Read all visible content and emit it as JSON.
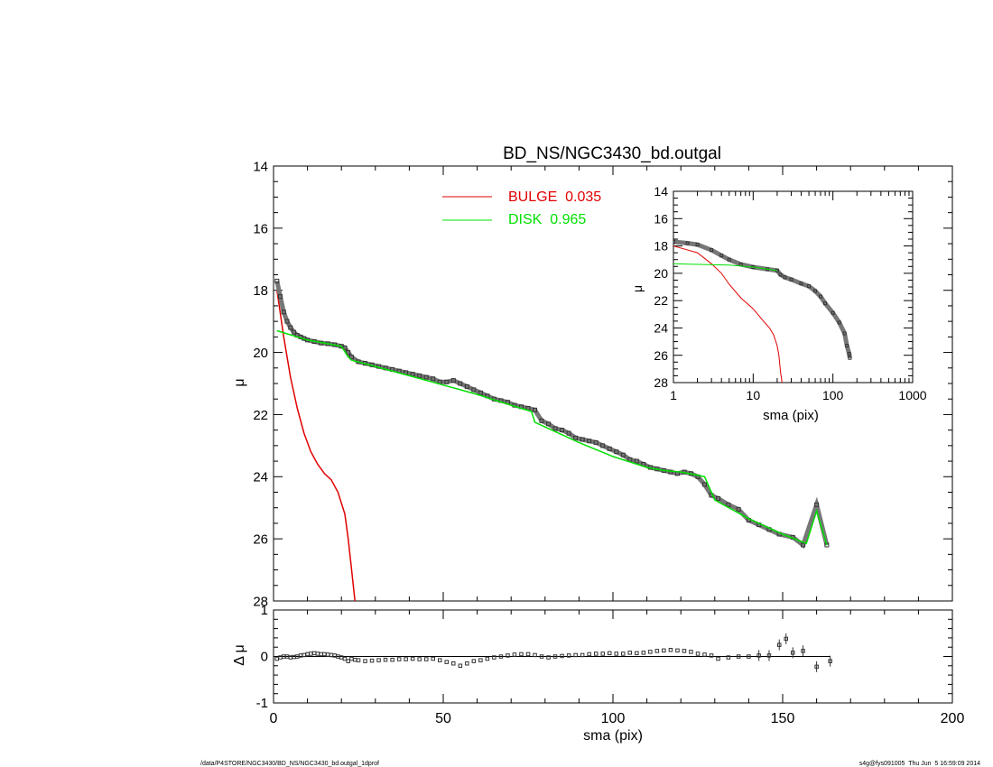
{
  "page": {
    "footer_left": "/data/P4STORE/NGC3430/BD_NS/NGC3430_bd.outgal_1dprof",
    "footer_right": "s4g@fys091005  Thu Jun  5 16:59:09 2014"
  },
  "colors": {
    "bulge": "#e00000",
    "disk": "#00e000",
    "data": "#555555",
    "axis": "#000000"
  },
  "chart_data": [
    {
      "id": "main",
      "type": "line",
      "title": "BD_NS/NGC3430_bd.outgal",
      "xlabel": "",
      "ylabel": "μ",
      "xlim": [
        0,
        200
      ],
      "ylim": [
        28,
        14
      ],
      "yticks": [
        14,
        16,
        18,
        20,
        22,
        24,
        26,
        28
      ],
      "legend": {
        "placement": "top-center",
        "entries": [
          {
            "name": "BULGE  0.035",
            "color": "#e00000"
          },
          {
            "name": "DISK  0.965",
            "color": "#00e000"
          }
        ]
      },
      "observed": {
        "x": [
          1,
          2,
          3,
          4,
          5,
          6,
          7,
          8,
          9,
          10,
          12,
          14,
          16,
          18,
          20,
          21,
          22,
          23,
          25,
          27,
          29,
          31,
          33,
          35,
          37,
          39,
          41,
          43,
          45,
          47,
          49,
          51,
          53,
          55,
          57,
          59,
          61,
          63,
          65,
          67,
          69,
          71,
          73,
          75,
          77,
          79,
          81,
          83,
          85,
          87,
          89,
          91,
          93,
          95,
          97,
          99,
          101,
          103,
          105,
          107,
          109,
          111,
          113,
          115,
          117,
          119,
          121,
          123,
          125,
          127,
          129,
          131,
          134,
          137,
          140,
          143,
          146,
          149,
          153,
          156,
          160,
          163
        ],
        "y": [
          17.7,
          18.2,
          18.7,
          19.0,
          19.2,
          19.35,
          19.45,
          19.5,
          19.55,
          19.6,
          19.65,
          19.7,
          19.72,
          19.75,
          19.8,
          19.85,
          20.0,
          20.15,
          20.3,
          20.35,
          20.4,
          20.45,
          20.5,
          20.55,
          20.6,
          20.65,
          20.7,
          20.75,
          20.8,
          20.85,
          20.95,
          20.95,
          20.9,
          21.0,
          21.1,
          21.2,
          21.3,
          21.4,
          21.5,
          21.55,
          21.6,
          21.7,
          21.75,
          21.8,
          21.85,
          22.2,
          22.3,
          22.45,
          22.5,
          22.6,
          22.75,
          22.8,
          22.85,
          22.9,
          23.0,
          23.1,
          23.2,
          23.3,
          23.45,
          23.5,
          23.6,
          23.7,
          23.75,
          23.8,
          23.85,
          23.9,
          23.85,
          23.9,
          24.0,
          24.25,
          24.6,
          24.7,
          24.9,
          25.05,
          25.4,
          25.55,
          25.7,
          25.85,
          25.95,
          26.2,
          24.9,
          26.2
        ]
      },
      "disk_model": {
        "x": [
          1,
          10,
          20,
          22,
          23,
          30,
          40,
          50,
          55,
          60,
          70,
          76,
          77,
          80,
          90,
          100,
          110,
          115,
          120,
          125,
          127,
          130,
          140,
          150,
          157,
          160,
          163
        ],
        "y": [
          19.3,
          19.6,
          19.8,
          20.15,
          20.25,
          20.45,
          20.75,
          21.05,
          21.2,
          21.35,
          21.7,
          21.9,
          22.25,
          22.4,
          22.9,
          23.35,
          23.7,
          23.8,
          23.85,
          23.95,
          24.0,
          24.75,
          25.35,
          25.85,
          26.15,
          25.1,
          26.2
        ]
      },
      "bulge_model": {
        "x": [
          1,
          3,
          5,
          7,
          9,
          11,
          13,
          15,
          17,
          19,
          21,
          22,
          23,
          24,
          25
        ],
        "y": [
          18.0,
          19.5,
          20.8,
          21.8,
          22.6,
          23.2,
          23.6,
          23.9,
          24.1,
          24.5,
          25.2,
          26.0,
          27.0,
          28.0,
          29.0
        ]
      }
    },
    {
      "id": "inset",
      "type": "line",
      "title": "",
      "xlabel": "sma (pix)",
      "ylabel": "μ",
      "xscale": "log",
      "xlim": [
        1,
        1000
      ],
      "xticks": [
        1,
        10,
        100,
        1000
      ],
      "ylim": [
        28,
        14
      ],
      "yticks": [
        14,
        16,
        18,
        20,
        22,
        24,
        26,
        28
      ],
      "observed": {
        "x": [
          1,
          1.5,
          2,
          3,
          4,
          5,
          7,
          10,
          15,
          20,
          22,
          25,
          30,
          40,
          50,
          60,
          70,
          80,
          100,
          120,
          140,
          150,
          160,
          163
        ],
        "y": [
          17.7,
          17.8,
          17.9,
          18.3,
          18.7,
          19.0,
          19.35,
          19.55,
          19.7,
          19.8,
          20.1,
          20.3,
          20.45,
          20.75,
          20.95,
          21.3,
          21.7,
          22.2,
          22.9,
          23.6,
          24.4,
          25.3,
          25.9,
          26.2
        ]
      },
      "disk_model": {
        "x": [
          1,
          5,
          10,
          15,
          20
        ],
        "y": [
          19.3,
          19.4,
          19.55,
          19.7,
          19.8
        ]
      },
      "bulge_model": {
        "x": [
          1,
          2,
          3,
          4,
          5,
          7,
          10,
          13,
          16,
          18,
          20,
          21,
          22,
          23
        ],
        "y": [
          18.0,
          18.5,
          19.3,
          20.0,
          20.8,
          21.8,
          22.6,
          23.4,
          24.0,
          24.5,
          25.3,
          26.0,
          27.2,
          28.0
        ]
      }
    },
    {
      "id": "residual",
      "type": "scatter",
      "title": "",
      "xlabel": "sma (pix)",
      "ylabel": "Δ μ",
      "xlim": [
        0,
        200
      ],
      "xticks": [
        0,
        50,
        100,
        150,
        200
      ],
      "ylim": [
        -1,
        1
      ],
      "yticks": [
        -1,
        0,
        1
      ],
      "x": [
        1,
        2,
        3,
        4,
        5,
        6,
        7,
        8,
        9,
        10,
        11,
        12,
        13,
        14,
        15,
        16,
        17,
        18,
        19,
        20,
        21,
        22,
        23,
        24,
        25,
        27,
        29,
        31,
        33,
        35,
        37,
        39,
        41,
        43,
        45,
        47,
        49,
        51,
        53,
        55,
        57,
        59,
        61,
        63,
        65,
        67,
        69,
        71,
        73,
        75,
        77,
        79,
        81,
        83,
        85,
        87,
        89,
        91,
        93,
        95,
        97,
        99,
        101,
        103,
        105,
        107,
        109,
        111,
        113,
        115,
        117,
        119,
        121,
        123,
        125,
        127,
        129,
        131,
        134,
        137,
        140,
        143,
        146,
        149,
        151,
        153,
        156,
        160,
        164
      ],
      "y": [
        -0.05,
        -0.02,
        0.0,
        0.0,
        -0.02,
        -0.01,
        0.0,
        0.02,
        0.03,
        0.05,
        0.06,
        0.07,
        0.06,
        0.05,
        0.05,
        0.04,
        0.03,
        0.02,
        0.0,
        -0.02,
        -0.05,
        -0.1,
        -0.05,
        -0.07,
        -0.08,
        -0.1,
        -0.09,
        -0.08,
        -0.07,
        -0.07,
        -0.06,
        -0.06,
        -0.05,
        -0.06,
        -0.06,
        -0.05,
        -0.08,
        -0.12,
        -0.15,
        -0.2,
        -0.15,
        -0.1,
        -0.08,
        -0.05,
        -0.02,
        0.0,
        0.02,
        0.04,
        0.05,
        0.05,
        0.03,
        0.0,
        -0.02,
        0.0,
        0.01,
        0.02,
        0.03,
        0.03,
        0.05,
        0.06,
        0.06,
        0.07,
        0.06,
        0.06,
        0.08,
        0.07,
        0.08,
        0.1,
        0.12,
        0.13,
        0.14,
        0.13,
        0.12,
        0.1,
        0.06,
        0.04,
        0.02,
        -0.05,
        -0.02,
        0.0,
        0.0,
        0.02,
        0.02,
        0.25,
        0.38,
        0.08,
        0.12,
        -0.22,
        -0.1
      ],
      "zero_line": {
        "x": [
          0,
          164
        ],
        "y": [
          0,
          0
        ]
      }
    }
  ]
}
